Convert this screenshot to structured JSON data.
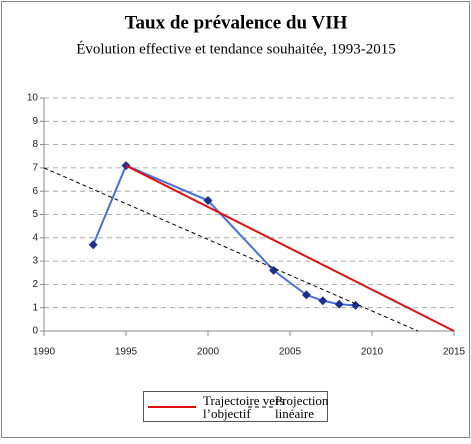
{
  "chart_data": {
    "type": "line",
    "title": "Taux de prévalence du VIH",
    "subtitle": "Évolution effective et tendance souhaitée, 1993-2015",
    "xlim": [
      1990,
      2015
    ],
    "xticks": [
      1990,
      1995,
      2000,
      2005,
      2010,
      2015
    ],
    "ylim": [
      0,
      10
    ],
    "yticks": [
      0,
      1,
      2,
      3,
      4,
      5,
      6,
      7,
      8,
      9,
      10
    ],
    "grid": true,
    "series": [
      {
        "color": "#4a6fd8",
        "marker_color": "#1f2f8f",
        "marker": "diamond",
        "x": [
          1993,
          1995,
          2000,
          2004,
          2006,
          2007,
          2008,
          2009
        ],
        "values": [
          3.7,
          7.1,
          5.6,
          2.6,
          1.55,
          1.3,
          1.15,
          1.1
        ]
      },
      {
        "name": "Trajectoire vers l’objectif",
        "color": "#e01010",
        "dashed": false,
        "x": [
          1995,
          2015
        ],
        "values": [
          7.1,
          0
        ]
      },
      {
        "name": "Projection linéaire",
        "color": "#000000",
        "dashed": true,
        "x": [
          1990,
          2012.8
        ],
        "values": [
          7,
          0
        ]
      }
    ]
  }
}
